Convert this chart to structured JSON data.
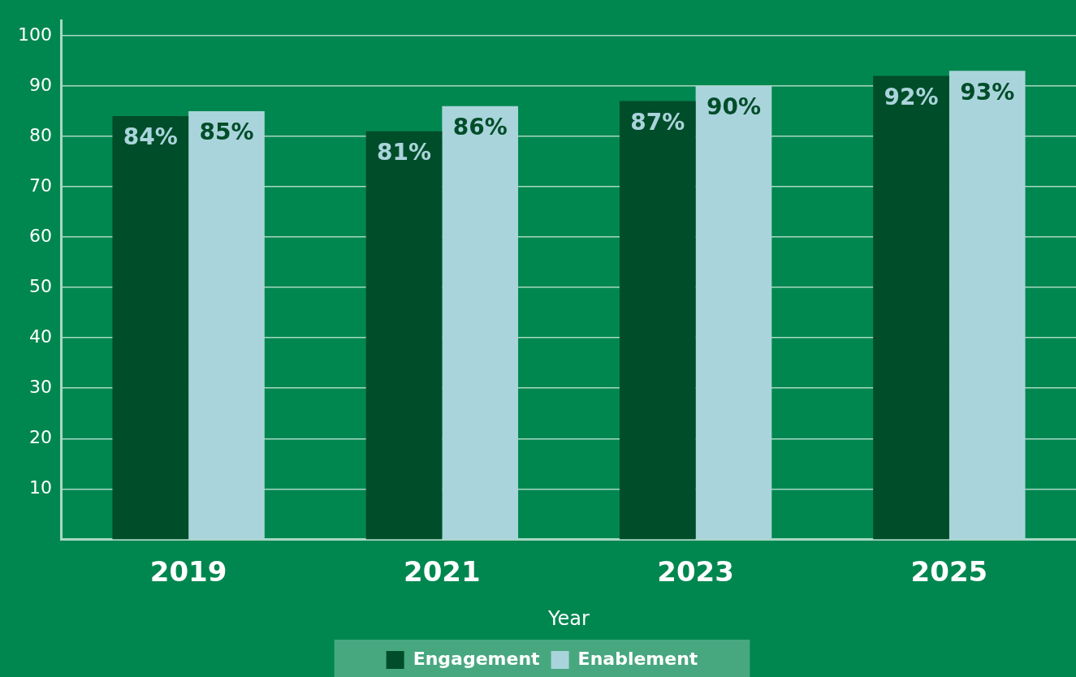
{
  "chart_data": {
    "type": "bar",
    "xlabel": "Year",
    "categories": [
      "2019",
      "2021",
      "2023",
      "2025"
    ],
    "series": [
      {
        "name": "Engagement",
        "color": "#004d2a",
        "values": [
          84,
          81,
          87,
          92
        ],
        "value_labels": [
          "84%",
          "81%",
          "87%",
          "92%"
        ]
      },
      {
        "name": "Enablement",
        "color": "#aad4db",
        "values": [
          85,
          86,
          90,
          93
        ],
        "value_labels": [
          "85%",
          "86%",
          "90%",
          "93%"
        ]
      }
    ],
    "ylim": [
      0,
      103
    ],
    "yticks": [
      10,
      20,
      30,
      40,
      50,
      60,
      70,
      80,
      90,
      100
    ],
    "grid": "y",
    "legend": "bottom"
  }
}
